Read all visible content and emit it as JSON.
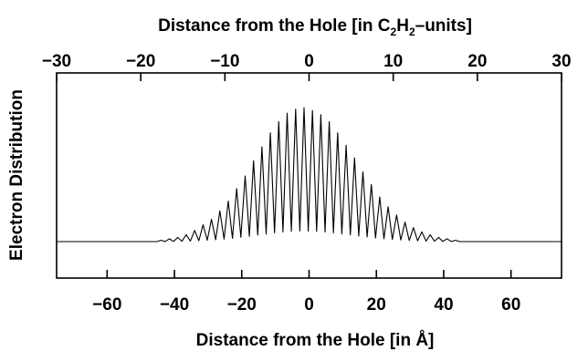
{
  "chart_data": {
    "type": "line",
    "top_title": "Distance from the Hole [in C",
    "top_title_sub1": "2",
    "top_title_mid": "H",
    "top_title_sub2": "2",
    "top_title_end": "–units]",
    "xlabel": "Distance from the Hole [in Å]",
    "ylabel": "Electron Distribution",
    "bottom_axis": {
      "range": [
        -75,
        75
      ],
      "ticks": [
        -60,
        -40,
        -20,
        0,
        20,
        40,
        60
      ],
      "tick_labels": [
        "−60",
        "−40",
        "−20",
        "0",
        "20",
        "40",
        "60"
      ]
    },
    "top_axis": {
      "range": [
        -30,
        30
      ],
      "ticks": [
        -30,
        -20,
        -10,
        0,
        10,
        20,
        30
      ],
      "tick_labels": [
        "−30",
        "−20",
        "−10",
        "0",
        "10",
        "20",
        "30"
      ]
    },
    "y_range": [
      0,
      1
    ],
    "baseline": 0,
    "series": [
      {
        "x": [
          -44,
          -41.5,
          -39,
          -36.5,
          -34,
          -31.5,
          -29,
          -26.5,
          -24,
          -21.5,
          -19,
          -16.5,
          -14,
          -11.5,
          -9,
          -6.5,
          -4,
          -1.5,
          1,
          3.5,
          6,
          8.5,
          11,
          13.5,
          16,
          18.5,
          21,
          23.5,
          26,
          28.5,
          31,
          33.5,
          36,
          38.5,
          41,
          43.5
        ],
        "y": [
          0.01,
          0.02,
          0.03,
          0.05,
          0.08,
          0.12,
          0.16,
          0.22,
          0.29,
          0.38,
          0.47,
          0.58,
          0.68,
          0.78,
          0.86,
          0.92,
          0.95,
          0.96,
          0.94,
          0.91,
          0.86,
          0.78,
          0.69,
          0.6,
          0.5,
          0.41,
          0.32,
          0.25,
          0.19,
          0.14,
          0.1,
          0.07,
          0.05,
          0.03,
          0.02,
          0.01
        ]
      }
    ]
  }
}
